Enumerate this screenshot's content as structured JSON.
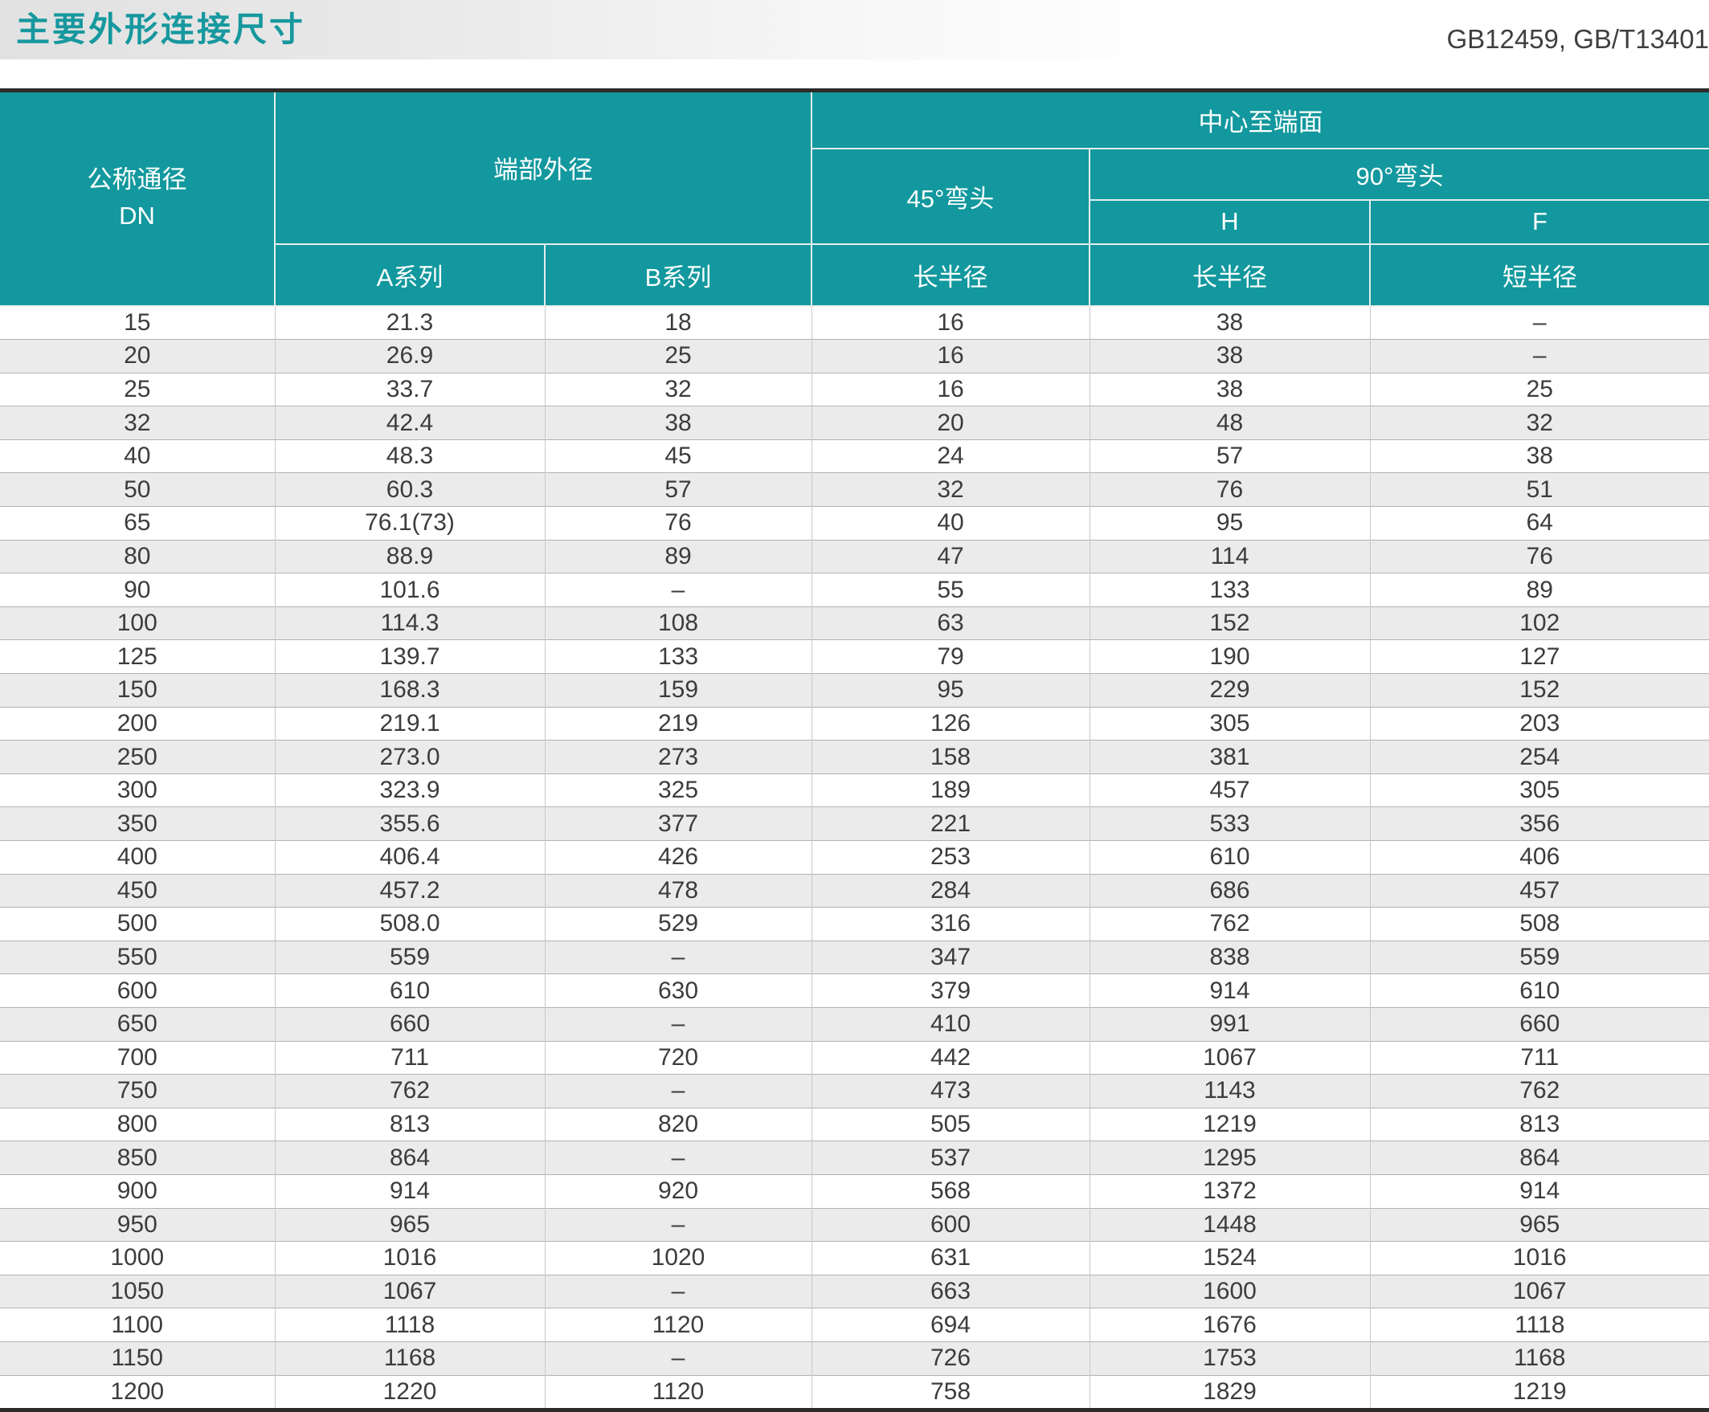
{
  "page": {
    "title": "主要外形连接尺寸",
    "standards": "GB12459, GB/T13401"
  },
  "colors": {
    "header_teal": "#12989e",
    "title_teal": "#16989e",
    "row_alt_gray": "#ebebeb",
    "border_dark": "#2e2c2b"
  },
  "table": {
    "header": {
      "col_dn_line1": "公称通径",
      "col_dn_line2": "DN",
      "group_end_od": "端部外径",
      "group_center_to_face": "中心至端面",
      "group_elbow45": "45°弯头",
      "group_elbow90": "90°弯头",
      "sub_h": "H",
      "sub_f": "F",
      "col_series_a": "A系列",
      "col_series_b": "B系列",
      "col_long_radius_45": "长半径",
      "col_long_radius_90h": "长半径",
      "col_short_radius_90f": "短半径"
    },
    "rows": [
      [
        "15",
        "21.3",
        "18",
        "16",
        "38",
        "–"
      ],
      [
        "20",
        "26.9",
        "25",
        "16",
        "38",
        "–"
      ],
      [
        "25",
        "33.7",
        "32",
        "16",
        "38",
        "25"
      ],
      [
        "32",
        "42.4",
        "38",
        "20",
        "48",
        "32"
      ],
      [
        "40",
        "48.3",
        "45",
        "24",
        "57",
        "38"
      ],
      [
        "50",
        "60.3",
        "57",
        "32",
        "76",
        "51"
      ],
      [
        "65",
        "76.1(73)",
        "76",
        "40",
        "95",
        "64"
      ],
      [
        "80",
        "88.9",
        "89",
        "47",
        "114",
        "76"
      ],
      [
        "90",
        "101.6",
        "–",
        "55",
        "133",
        "89"
      ],
      [
        "100",
        "114.3",
        "108",
        "63",
        "152",
        "102"
      ],
      [
        "125",
        "139.7",
        "133",
        "79",
        "190",
        "127"
      ],
      [
        "150",
        "168.3",
        "159",
        "95",
        "229",
        "152"
      ],
      [
        "200",
        "219.1",
        "219",
        "126",
        "305",
        "203"
      ],
      [
        "250",
        "273.0",
        "273",
        "158",
        "381",
        "254"
      ],
      [
        "300",
        "323.9",
        "325",
        "189",
        "457",
        "305"
      ],
      [
        "350",
        "355.6",
        "377",
        "221",
        "533",
        "356"
      ],
      [
        "400",
        "406.4",
        "426",
        "253",
        "610",
        "406"
      ],
      [
        "450",
        "457.2",
        "478",
        "284",
        "686",
        "457"
      ],
      [
        "500",
        "508.0",
        "529",
        "316",
        "762",
        "508"
      ],
      [
        "550",
        "559",
        "–",
        "347",
        "838",
        "559"
      ],
      [
        "600",
        "610",
        "630",
        "379",
        "914",
        "610"
      ],
      [
        "650",
        "660",
        "–",
        "410",
        "991",
        "660"
      ],
      [
        "700",
        "711",
        "720",
        "442",
        "1067",
        "711"
      ],
      [
        "750",
        "762",
        "–",
        "473",
        "1143",
        "762"
      ],
      [
        "800",
        "813",
        "820",
        "505",
        "1219",
        "813"
      ],
      [
        "850",
        "864",
        "–",
        "537",
        "1295",
        "864"
      ],
      [
        "900",
        "914",
        "920",
        "568",
        "1372",
        "914"
      ],
      [
        "950",
        "965",
        "–",
        "600",
        "1448",
        "965"
      ],
      [
        "1000",
        "1016",
        "1020",
        "631",
        "1524",
        "1016"
      ],
      [
        "1050",
        "1067",
        "–",
        "663",
        "1600",
        "1067"
      ],
      [
        "1100",
        "1118",
        "1120",
        "694",
        "1676",
        "1118"
      ],
      [
        "1150",
        "1168",
        "–",
        "726",
        "1753",
        "1168"
      ],
      [
        "1200",
        "1220",
        "1120",
        "758",
        "1829",
        "1219"
      ]
    ]
  }
}
